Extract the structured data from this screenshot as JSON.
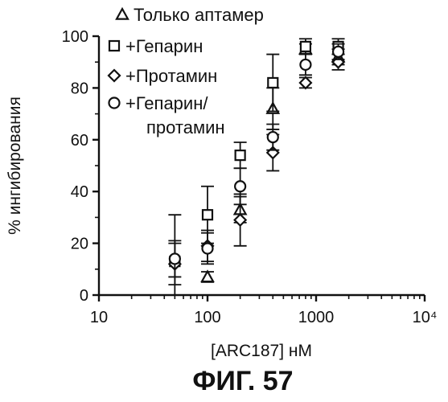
{
  "chart_data": {
    "type": "scatter",
    "title": "",
    "caption": "ФИГ. 57",
    "xlabel": "[ARC187] нМ",
    "ylabel": "% ингибирования",
    "x_scale": "log",
    "xlim": [
      10,
      10000
    ],
    "ylim": [
      0,
      100
    ],
    "x_ticks": [
      "10",
      "100",
      "1000",
      "10⁴"
    ],
    "y_ticks": [
      "0",
      "20",
      "40",
      "60",
      "80",
      "100"
    ],
    "legend_position": "top-right",
    "grid": false,
    "series": [
      {
        "name": "Только аптамер",
        "marker": "triangle",
        "points": [
          {
            "x": 100,
            "y": 7,
            "err": 2
          },
          {
            "x": 200,
            "y": 33,
            "err": 5
          },
          {
            "x": 400,
            "y": 72,
            "err": 8
          },
          {
            "x": 800,
            "y": 95,
            "err": 2
          },
          {
            "x": 1600,
            "y": 92,
            "err": 3
          }
        ]
      },
      {
        "name": "+Гепарин",
        "marker": "square",
        "points": [
          {
            "x": 50,
            "y": 13,
            "err": 18
          },
          {
            "x": 100,
            "y": 31,
            "err": 11
          },
          {
            "x": 200,
            "y": 54,
            "err": 5
          },
          {
            "x": 400,
            "y": 82,
            "err": 11
          },
          {
            "x": 800,
            "y": 96,
            "err": 3
          },
          {
            "x": 1600,
            "y": 96,
            "err": 3
          }
        ]
      },
      {
        "name": "+Протамин",
        "marker": "diamond",
        "points": [
          {
            "x": 50,
            "y": 12,
            "err": 8
          },
          {
            "x": 100,
            "y": 19,
            "err": 6
          },
          {
            "x": 200,
            "y": 29,
            "err": 10
          },
          {
            "x": 400,
            "y": 55,
            "err": 7
          },
          {
            "x": 800,
            "y": 82,
            "err": 2
          },
          {
            "x": 1600,
            "y": 90,
            "err": 3
          }
        ]
      },
      {
        "name": "+Гепарин/ протамин",
        "marker": "circle",
        "points": [
          {
            "x": 50,
            "y": 14,
            "err": 7
          },
          {
            "x": 100,
            "y": 18,
            "err": 6
          },
          {
            "x": 200,
            "y": 42,
            "err": 7
          },
          {
            "x": 400,
            "y": 61,
            "err": 5
          },
          {
            "x": 800,
            "y": 89,
            "err": 4
          },
          {
            "x": 1600,
            "y": 94,
            "err": 3
          }
        ]
      }
    ]
  }
}
